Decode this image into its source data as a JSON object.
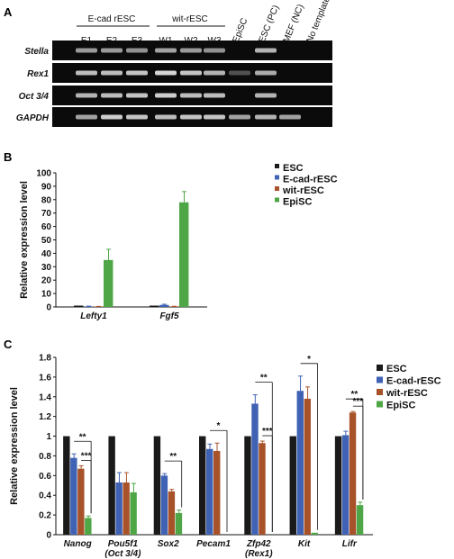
{
  "panel_a": {
    "letter": "A",
    "group1_label": "E-cad rESC",
    "group2_label": "wit-rESC",
    "lanes": [
      "E1",
      "E2",
      "E3",
      "W1",
      "W2",
      "W3",
      "EpiSC",
      "ESC (PC)",
      "MEF (NC)",
      "No template"
    ],
    "genes": [
      "Stella",
      "Rex1",
      "Oct 3/4",
      "GAPDH"
    ]
  },
  "panel_b": {
    "letter": "B"
  },
  "panel_c": {
    "letter": "C"
  },
  "chart_data": [
    {
      "type": "bar",
      "ylabel": "Relative expression level",
      "ylim": [
        0,
        100
      ],
      "yticks": [
        0,
        10,
        20,
        30,
        40,
        50,
        60,
        70,
        80,
        90,
        100
      ],
      "categories": [
        "Lefty1",
        "Fgf5"
      ],
      "series": [
        {
          "name": "ESC",
          "color": "#1a1a1a",
          "values": [
            1,
            1
          ],
          "errors": [
            0,
            0
          ]
        },
        {
          "name": "E-cad-rESC",
          "color": "#3f62b4",
          "values": [
            0.4,
            1.5
          ],
          "errors": [
            0.2,
            0.5
          ]
        },
        {
          "name": "wit-rESC",
          "color": "#a8522a",
          "values": [
            0.3,
            0.4
          ],
          "errors": [
            0.1,
            0.1
          ]
        },
        {
          "name": "EpiSC",
          "color": "#4ea646",
          "values": [
            35,
            78
          ],
          "errors": [
            8,
            8
          ]
        }
      ],
      "legend": "top-right"
    },
    {
      "type": "bar",
      "ylabel": "Relative expression level",
      "ylim": [
        0,
        1.8
      ],
      "yticks": [
        "0",
        "0.2",
        "0.4",
        "0.6",
        "0.8",
        "1",
        "1.2",
        "1.4",
        "1.6",
        "1.8"
      ],
      "categories": [
        {
          "line1": "Nanog",
          "line2": ""
        },
        {
          "line1": "Pou5f1",
          "line2": "(Oct 3/4)"
        },
        {
          "line1": "Sox2",
          "line2": ""
        },
        {
          "line1": "Pecam1",
          "line2": ""
        },
        {
          "line1": "Zfp42",
          "line2": "(Rex1)"
        },
        {
          "line1": "Kit",
          "line2": ""
        },
        {
          "line1": "Lifr",
          "line2": ""
        }
      ],
      "series": [
        {
          "name": "ESC",
          "color": "#1a1a1a",
          "values": [
            1,
            1,
            1,
            1,
            1,
            1,
            1
          ],
          "errors": [
            0,
            0,
            0,
            0,
            0,
            0,
            0
          ]
        },
        {
          "name": "E-cad-rESC",
          "color": "#3f62b4",
          "values": [
            0.78,
            0.53,
            0.6,
            0.87,
            1.33,
            1.46,
            1.01
          ],
          "errors": [
            0.04,
            0.1,
            0.02,
            0.05,
            0.09,
            0.15,
            0.04
          ]
        },
        {
          "name": "wit-rESC",
          "color": "#a8522a",
          "values": [
            0.67,
            0.53,
            0.44,
            0.85,
            0.93,
            1.38,
            1.24
          ],
          "errors": [
            0.03,
            0.1,
            0.02,
            0.08,
            0.02,
            0.12,
            0.01
          ]
        },
        {
          "name": "EpiSC",
          "color": "#4ea646",
          "values": [
            0.17,
            0.43,
            0.22,
            0,
            0,
            0.02,
            0.3
          ],
          "errors": [
            0.02,
            0.09,
            0.03,
            0,
            0,
            0,
            0.03
          ]
        }
      ],
      "significance": [
        {
          "category": 0,
          "label": "**",
          "from": 1,
          "to": 3
        },
        {
          "category": 0,
          "label": "***",
          "from": 2,
          "to": 3
        },
        {
          "category": 2,
          "label": "**",
          "from": 1,
          "to": 3
        },
        {
          "category": 3,
          "label": "*",
          "from": 1,
          "to": 3
        },
        {
          "category": 4,
          "label": "**",
          "from": 1,
          "to": 3
        },
        {
          "category": 4,
          "label": "***",
          "from": 2,
          "to": 3
        },
        {
          "category": 5,
          "label": "*",
          "from": 1,
          "to": 3
        },
        {
          "category": 6,
          "label": "**",
          "from": 1,
          "to": 3
        },
        {
          "category": 6,
          "label": "***",
          "from": 2,
          "to": 3
        }
      ],
      "legend": "top-right"
    }
  ]
}
